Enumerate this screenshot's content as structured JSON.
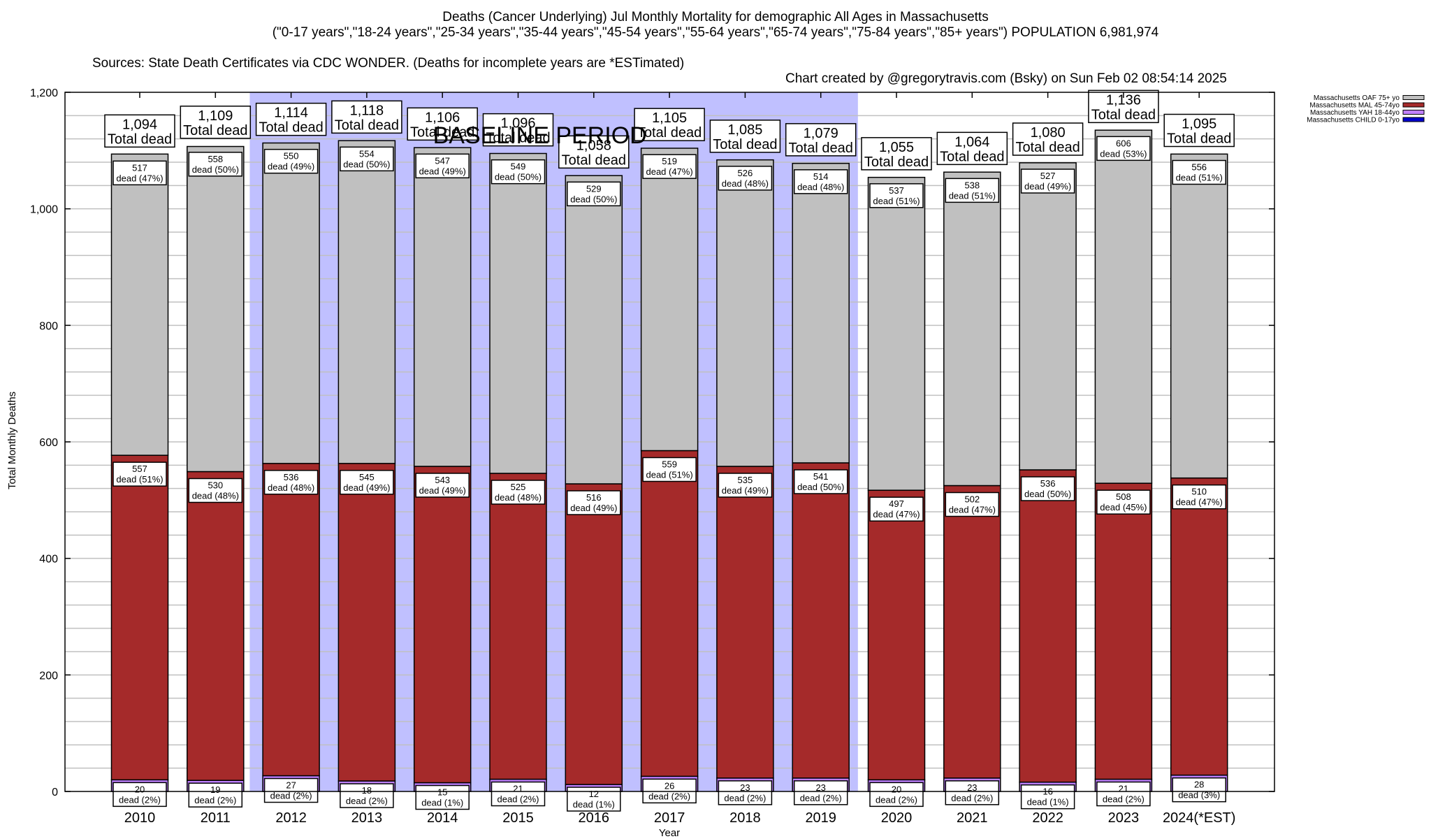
{
  "header": {
    "title_line1": "Deaths (Cancer Underlying) Jul Monthly Mortality for demographic All Ages in Massachusetts",
    "title_line2": "(\"0-17 years\",\"18-24 years\",\"25-34 years\",\"35-44 years\",\"45-54 years\",\"55-64 years\",\"65-74 years\",\"75-84 years\",\"85+ years\") POPULATION 6,981,974",
    "sources": "Sources: State Death Certificates via CDC WONDER. (Deaths for incomplete years are *ESTimated)",
    "credit": "Chart created by @gregorytravis.com (Bsky) on Sun Feb 02 08:54:14 2025"
  },
  "chart_data": {
    "type": "bar",
    "stacked": true,
    "title": "Deaths (Cancer Underlying) Jul Monthly Mortality for demographic All Ages in Massachusetts",
    "xlabel": "Year",
    "ylabel": "Total Monthly Deaths",
    "ylim": [
      0,
      1200
    ],
    "yticks": [
      0,
      200,
      400,
      600,
      800,
      1000,
      1200
    ],
    "ytick_labels": [
      "0",
      "200",
      "400",
      "600",
      "800",
      "1,000",
      "1,200"
    ],
    "minor_grid_step": 40,
    "grid": true,
    "legend_position": "top-right",
    "categories": [
      "2010",
      "2011",
      "2012",
      "2013",
      "2014",
      "2015",
      "2016",
      "2017",
      "2018",
      "2019",
      "2020",
      "2021",
      "2022",
      "2023",
      "2024(*EST)"
    ],
    "series": [
      {
        "name": "Massachusetts CHILD 0-17yo",
        "color": "#0000cc",
        "values": [
          0,
          0,
          0,
          0,
          0,
          0,
          0,
          0,
          0,
          0,
          0,
          0,
          0,
          0,
          0
        ]
      },
      {
        "name": "Massachusetts YAH 18-44yo",
        "color": "#c080ff",
        "values": [
          20,
          19,
          27,
          18,
          15,
          21,
          12,
          26,
          23,
          23,
          20,
          23,
          16,
          21,
          28
        ],
        "pct": [
          "2%",
          "2%",
          "2%",
          "2%",
          "1%",
          "2%",
          "1%",
          "2%",
          "2%",
          "2%",
          "2%",
          "2%",
          "1%",
          "2%",
          "3%"
        ]
      },
      {
        "name": "Massachusetts MAL 45-74yo",
        "color": "#a52a2a",
        "values": [
          557,
          530,
          536,
          545,
          543,
          525,
          516,
          559,
          535,
          541,
          497,
          502,
          536,
          508,
          510
        ],
        "pct": [
          "51%",
          "48%",
          "48%",
          "49%",
          "49%",
          "48%",
          "49%",
          "51%",
          "49%",
          "50%",
          "47%",
          "47%",
          "50%",
          "45%",
          "47%"
        ]
      },
      {
        "name": "Massachusetts OAF 75+ yo",
        "color": "#c0c0c0",
        "values": [
          517,
          558,
          550,
          554,
          547,
          549,
          529,
          519,
          526,
          514,
          537,
          538,
          527,
          606,
          556
        ],
        "pct": [
          "47%",
          "50%",
          "49%",
          "50%",
          "49%",
          "50%",
          "50%",
          "47%",
          "48%",
          "48%",
          "51%",
          "51%",
          "49%",
          "53%",
          "51%"
        ]
      }
    ],
    "totals": [
      "1,094",
      "1,109",
      "1,114",
      "1,118",
      "1,106",
      "1,096",
      "1,058",
      "1,105",
      "1,085",
      "1,079",
      "1,055",
      "1,064",
      "1,080",
      "1,136",
      "1,095"
    ],
    "totals_values": [
      1094,
      1109,
      1114,
      1118,
      1106,
      1096,
      1058,
      1105,
      1085,
      1079,
      1055,
      1064,
      1080,
      1136,
      1095
    ],
    "total_label_suffix": "Total dead",
    "segment_label_word": "dead",
    "annotations": [
      {
        "text": "BASELINE PERIOD",
        "from": "2012",
        "to": "2019",
        "color": "#c0c0ff"
      }
    ]
  }
}
